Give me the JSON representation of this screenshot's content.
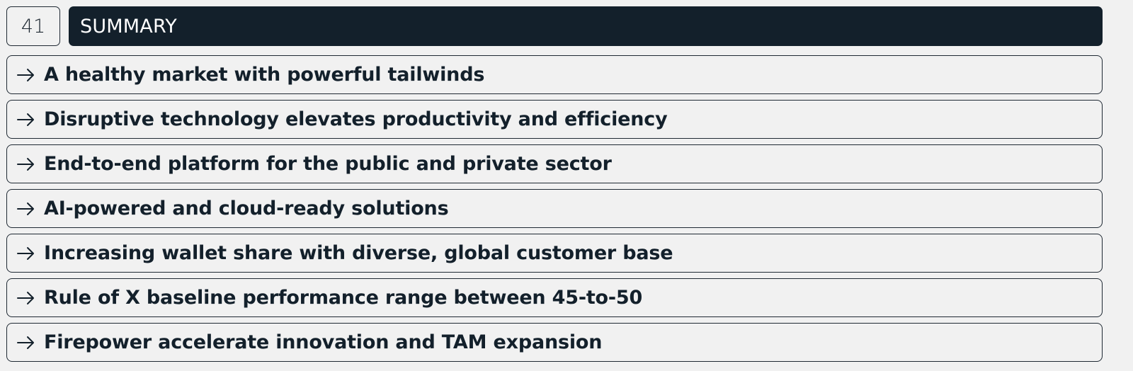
{
  "slide": {
    "number": "41",
    "title": "SUMMARY"
  },
  "items": [
    {
      "icon": "arrow-right-icon",
      "text": "A healthy market with powerful tailwinds"
    },
    {
      "icon": "arrow-right-icon",
      "text": "Disruptive technology elevates productivity and efficiency"
    },
    {
      "icon": "arrow-right-icon",
      "text": "End-to-end platform for the public and private sector"
    },
    {
      "icon": "arrow-right-icon",
      "text": "AI-powered and cloud-ready solutions"
    },
    {
      "icon": "arrow-right-icon",
      "text": "Increasing wallet share with diverse, global customer base"
    },
    {
      "icon": "arrow-right-icon",
      "text": "Rule of X baseline performance range between 45-to-50"
    },
    {
      "icon": "arrow-right-icon",
      "text": "Firepower accelerate innovation and TAM expansion"
    }
  ],
  "colors": {
    "title_bar_bg": "#13202b",
    "title_text": "#ffffff",
    "page_bg": "#f1f1f1",
    "border": "#1f2933",
    "text": "#13202b"
  }
}
